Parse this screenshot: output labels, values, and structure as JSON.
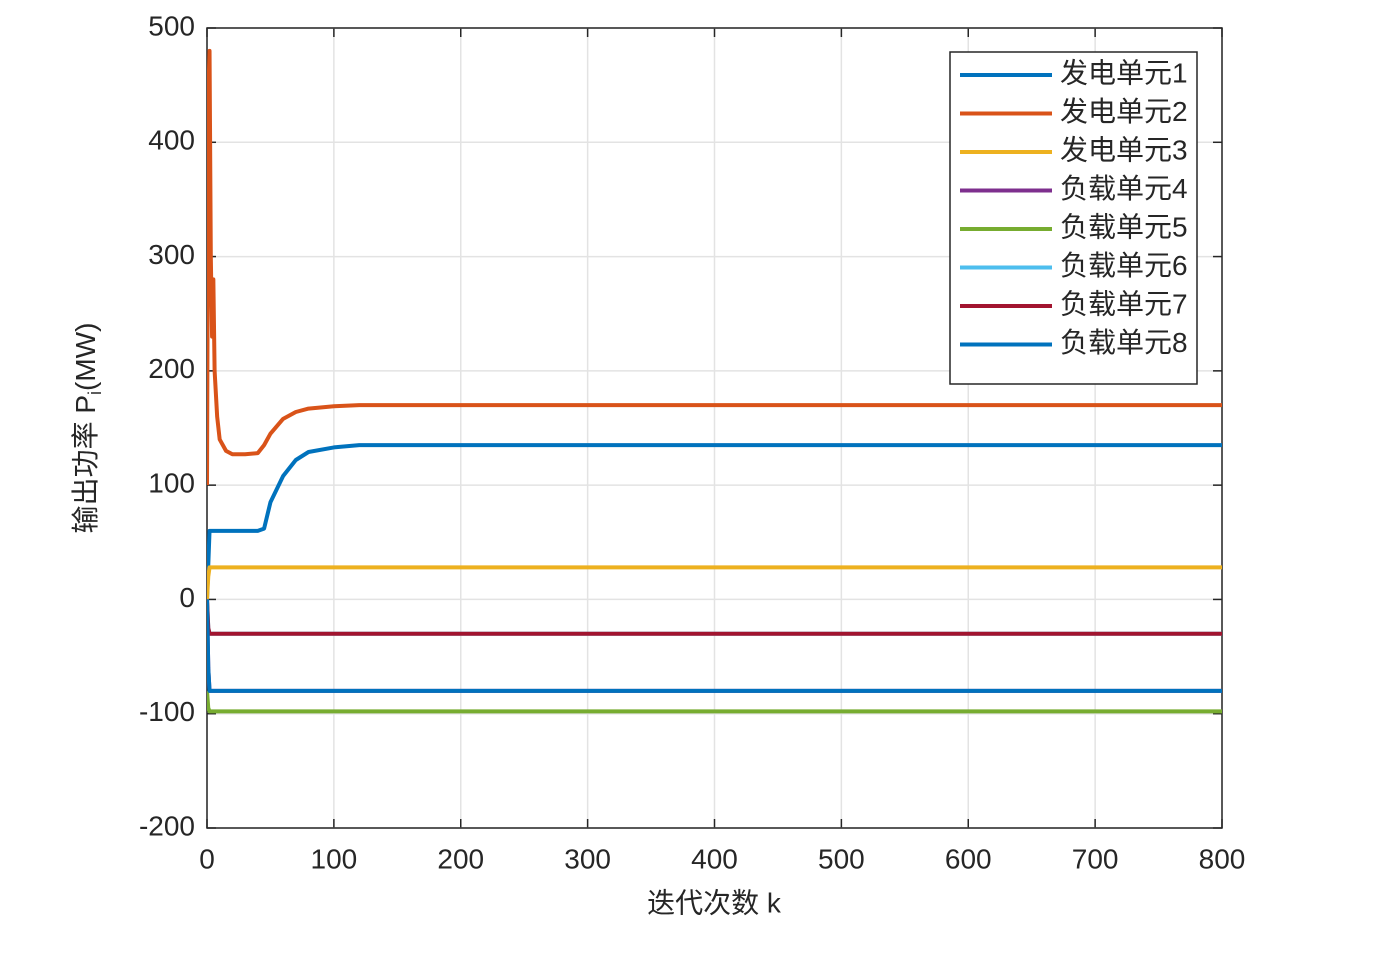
{
  "chart_data": {
    "type": "line",
    "xlabel": "迭代次数 k",
    "ylabel": [
      "输出功率 P",
      "i",
      "(MW)"
    ],
    "x": [
      0,
      1,
      2,
      3,
      4,
      5,
      6,
      8,
      10,
      15,
      20,
      30,
      40,
      45,
      50,
      60,
      70,
      80,
      100,
      120,
      150,
      200,
      300,
      400,
      500,
      600,
      700,
      800
    ],
    "series": [
      {
        "name": "发电单元1",
        "color": "#0072BD",
        "values": [
          0,
          30,
          60,
          60,
          60,
          60,
          60,
          60,
          60,
          60,
          60,
          60,
          60,
          62,
          85,
          108,
          122,
          129,
          133,
          135,
          135,
          135,
          135,
          135,
          135,
          135,
          135,
          135
        ]
      },
      {
        "name": "发电单元2",
        "color": "#D95319",
        "values": [
          100,
          440,
          480,
          300,
          230,
          280,
          200,
          160,
          140,
          130,
          127,
          127,
          128,
          135,
          145,
          158,
          164,
          167,
          169,
          170,
          170,
          170,
          170,
          170,
          170,
          170,
          170,
          170
        ]
      },
      {
        "name": "发电单元3",
        "color": "#EDB120",
        "values": [
          0,
          20,
          28,
          28,
          28,
          28,
          28,
          28,
          28,
          28,
          28,
          28,
          28,
          28,
          28,
          28,
          28,
          28,
          28,
          28,
          28,
          28,
          28,
          28,
          28,
          28,
          28,
          28
        ]
      },
      {
        "name": "负载单元4",
        "color": "#7E2F8E",
        "values": [
          0,
          -60,
          -80,
          -80,
          -80,
          -80,
          -80,
          -80,
          -80,
          -80,
          -80,
          -80,
          -80,
          -80,
          -80,
          -80,
          -80,
          -80,
          -80,
          -80,
          -80,
          -80,
          -80,
          -80,
          -80,
          -80,
          -80,
          -80
        ]
      },
      {
        "name": "负载单元5",
        "color": "#77AC30",
        "values": [
          -80,
          -95,
          -98,
          -98,
          -98,
          -98,
          -98,
          -98,
          -98,
          -98,
          -98,
          -98,
          -98,
          -98,
          -98,
          -98,
          -98,
          -98,
          -98,
          -98,
          -98,
          -98,
          -98,
          -98,
          -98,
          -98,
          -98,
          -98
        ]
      },
      {
        "name": "负载单元6",
        "color": "#4DBEEE",
        "values": [
          0,
          -25,
          -30,
          -30,
          -30,
          -30,
          -30,
          -30,
          -30,
          -30,
          -30,
          -30,
          -30,
          -30,
          -30,
          -30,
          -30,
          -30,
          -30,
          -30,
          -30,
          -30,
          -30,
          -30,
          -30,
          -30,
          -30,
          -30
        ]
      },
      {
        "name": "负载单元7",
        "color": "#A2142F",
        "values": [
          0,
          -25,
          -30,
          -30,
          -30,
          -30,
          -30,
          -30,
          -30,
          -30,
          -30,
          -30,
          -30,
          -30,
          -30,
          -30,
          -30,
          -30,
          -30,
          -30,
          -30,
          -30,
          -30,
          -30,
          -30,
          -30,
          -30,
          -30
        ]
      },
      {
        "name": "负载单元8",
        "color": "#0072BD",
        "values": [
          0,
          -60,
          -80,
          -80,
          -80,
          -80,
          -80,
          -80,
          -80,
          -80,
          -80,
          -80,
          -80,
          -80,
          -80,
          -80,
          -80,
          -80,
          -80,
          -80,
          -80,
          -80,
          -80,
          -80,
          -80,
          -80,
          -80,
          -80
        ]
      }
    ],
    "xlim": [
      0,
      800
    ],
    "xticks": [
      0,
      100,
      200,
      300,
      400,
      500,
      600,
      700,
      800
    ],
    "ylim": [
      -200,
      500
    ],
    "yticks": [
      -200,
      -100,
      0,
      100,
      200,
      300,
      400,
      500
    ],
    "grid": true,
    "legend": "upper right"
  }
}
